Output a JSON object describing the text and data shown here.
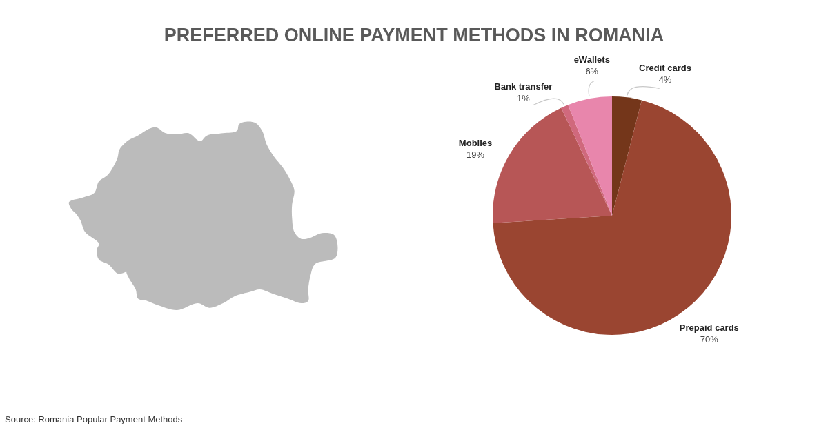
{
  "chart_data": {
    "type": "pie",
    "title": "PREFERRED ONLINE PAYMENT METHODS IN ROMANIA",
    "categories": [
      "Credit cards",
      "Prepaid cards",
      "Mobiles",
      "Bank transfer",
      "eWallets"
    ],
    "values": [
      4,
      70,
      19,
      1,
      6
    ],
    "colors": [
      "#74361a",
      "#9a4531",
      "#b75656",
      "#d0697d",
      "#e886ac"
    ],
    "value_labels": [
      "4%",
      "70%",
      "19%",
      "1%",
      "6%"
    ],
    "annotations": [
      "Source: Romania Popular Payment Methods"
    ]
  }
}
